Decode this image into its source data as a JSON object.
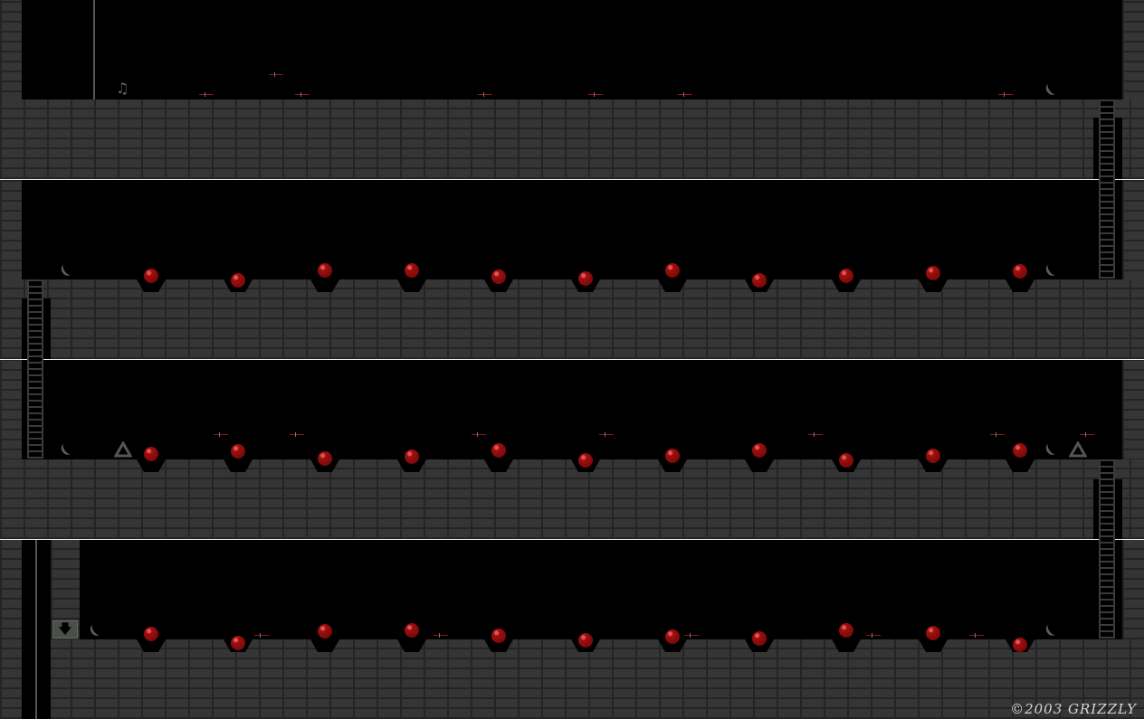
{
  "game": {
    "copyright": "©2003 GRIZZLY",
    "colors": {
      "brick": "#353535",
      "mortar": "#242424",
      "ball": "#a01010",
      "separator": "#e8e8e8"
    },
    "icons": [
      "red-ball",
      "knife",
      "crescent-blade",
      "triangle-marker",
      "music-note-icon",
      "exit-arrow-icon",
      "ladder"
    ]
  }
}
